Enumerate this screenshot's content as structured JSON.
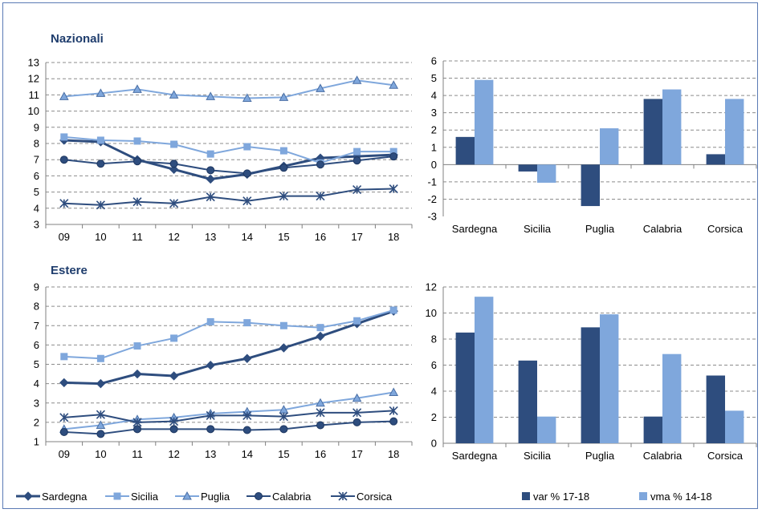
{
  "colors": {
    "dark": "#2e4d7e",
    "light": "#7fa7dc",
    "grid": "#909090",
    "title": "#1f3d6d"
  },
  "panels": {
    "top_title": "Nazionali",
    "bottom_title": "Estere"
  },
  "chart_data": [
    {
      "type": "line",
      "title": "Nazionali",
      "categories": [
        "09",
        "10",
        "11",
        "12",
        "13",
        "14",
        "15",
        "16",
        "17",
        "18"
      ],
      "ylim": [
        3,
        13
      ],
      "yticks": [
        3,
        4,
        5,
        6,
        7,
        8,
        9,
        10,
        11,
        12,
        13
      ],
      "grid": true,
      "series": [
        {
          "name": "Sardegna",
          "marker": "diamond",
          "color": "#2e4d7e",
          "width": 3,
          "values": [
            8.2,
            8.1,
            7.0,
            6.4,
            5.8,
            6.1,
            6.6,
            7.1,
            7.2,
            7.3
          ]
        },
        {
          "name": "Sicilia",
          "marker": "square",
          "color": "#7fa7dc",
          "width": 2,
          "values": [
            8.4,
            8.2,
            8.15,
            7.95,
            7.35,
            7.8,
            7.55,
            6.8,
            7.5,
            7.5
          ]
        },
        {
          "name": "Puglia",
          "marker": "triangle",
          "color": "#7fa7dc",
          "width": 2,
          "values": [
            10.9,
            11.1,
            11.35,
            11.0,
            10.9,
            10.8,
            10.85,
            11.4,
            11.9,
            11.6
          ]
        },
        {
          "name": "Calabria",
          "marker": "circle",
          "color": "#2e4d7e",
          "width": 2,
          "values": [
            7.0,
            6.75,
            6.9,
            6.75,
            6.35,
            6.15,
            6.5,
            6.7,
            6.95,
            7.2
          ]
        },
        {
          "name": "Corsica",
          "marker": "star",
          "color": "#2e4d7e",
          "width": 2,
          "values": [
            4.3,
            4.2,
            4.4,
            4.3,
            4.7,
            4.45,
            4.75,
            4.75,
            5.15,
            5.2
          ]
        }
      ]
    },
    {
      "type": "bar",
      "categories": [
        "Sardegna",
        "Sicilia",
        "Puglia",
        "Calabria",
        "Corsica"
      ],
      "ylim": [
        -3,
        6
      ],
      "yticks": [
        -3,
        -2,
        -1,
        0,
        1,
        2,
        3,
        4,
        5,
        6
      ],
      "grid": true,
      "series": [
        {
          "name": "var % 17-18",
          "color": "#2e4d7e",
          "values": [
            1.6,
            -0.4,
            -2.4,
            3.8,
            0.6
          ]
        },
        {
          "name": "vma % 14-18",
          "color": "#7fa7dc",
          "values": [
            4.9,
            -1.05,
            2.1,
            4.35,
            3.8
          ]
        }
      ]
    },
    {
      "type": "line",
      "title": "Estere",
      "categories": [
        "09",
        "10",
        "11",
        "12",
        "13",
        "14",
        "15",
        "16",
        "17",
        "18"
      ],
      "ylim": [
        1,
        9
      ],
      "yticks": [
        1,
        2,
        3,
        4,
        5,
        6,
        7,
        8,
        9
      ],
      "grid": true,
      "series": [
        {
          "name": "Sardegna",
          "marker": "diamond",
          "color": "#2e4d7e",
          "width": 3,
          "values": [
            4.05,
            4.0,
            4.5,
            4.4,
            4.95,
            5.3,
            5.85,
            6.45,
            7.1,
            7.75
          ]
        },
        {
          "name": "Sicilia",
          "marker": "square",
          "color": "#7fa7dc",
          "width": 2,
          "values": [
            5.4,
            5.3,
            5.95,
            6.35,
            7.2,
            7.15,
            7.0,
            6.9,
            7.25,
            7.8
          ]
        },
        {
          "name": "Puglia",
          "marker": "triangle",
          "color": "#7fa7dc",
          "width": 2,
          "values": [
            1.65,
            1.85,
            2.15,
            2.25,
            2.45,
            2.55,
            2.65,
            3.0,
            3.25,
            3.55
          ]
        },
        {
          "name": "Calabria",
          "marker": "circle",
          "color": "#2e4d7e",
          "width": 2,
          "values": [
            1.5,
            1.4,
            1.65,
            1.65,
            1.65,
            1.6,
            1.65,
            1.85,
            2.0,
            2.05
          ]
        },
        {
          "name": "Corsica",
          "marker": "star",
          "color": "#2e4d7e",
          "width": 2,
          "values": [
            2.25,
            2.4,
            2.0,
            2.05,
            2.35,
            2.35,
            2.3,
            2.5,
            2.5,
            2.6
          ]
        }
      ]
    },
    {
      "type": "bar",
      "categories": [
        "Sardegna",
        "Sicilia",
        "Puglia",
        "Calabria",
        "Corsica"
      ],
      "ylim": [
        0,
        12
      ],
      "yticks": [
        0,
        2,
        4,
        6,
        8,
        10,
        12
      ],
      "grid": true,
      "series": [
        {
          "name": "var % 17-18",
          "color": "#2e4d7e",
          "values": [
            8.5,
            6.35,
            8.9,
            2.05,
            5.2
          ]
        },
        {
          "name": "vma % 14-18",
          "color": "#7fa7dc",
          "values": [
            11.25,
            2.05,
            9.9,
            6.85,
            2.5
          ]
        }
      ]
    }
  ],
  "legend_lines": [
    "Sardegna",
    "Sicilia",
    "Puglia",
    "Calabria",
    "Corsica"
  ],
  "legend_bars": [
    "var % 17-18",
    "vma % 14-18"
  ]
}
